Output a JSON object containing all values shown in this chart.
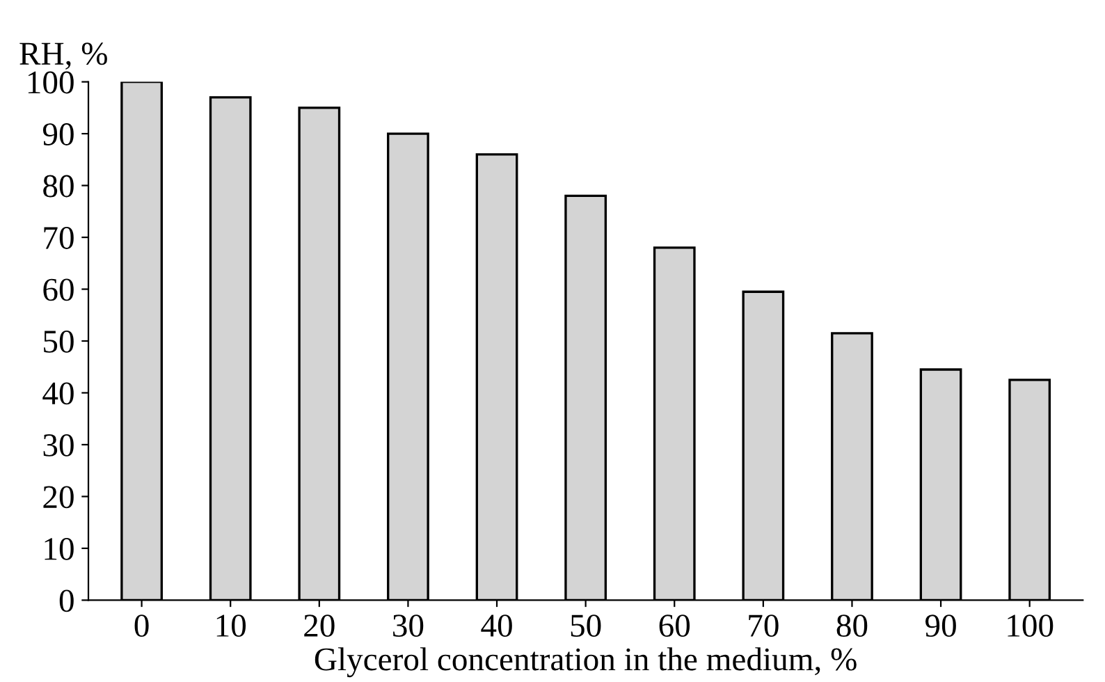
{
  "chart_data": {
    "type": "bar",
    "xlabel": "Glycerol concentration in the medium, %",
    "ylabel": "RH, %",
    "categories": [
      "0",
      "10",
      "20",
      "30",
      "40",
      "50",
      "60",
      "70",
      "80",
      "90",
      "100"
    ],
    "values": [
      100,
      97,
      95,
      90,
      86,
      78,
      68,
      59.5,
      51.5,
      44.5,
      42.5
    ],
    "color": "#d4d4d4",
    "ylim": [
      0,
      100
    ],
    "yticks": [
      0,
      10,
      20,
      30,
      40,
      50,
      60,
      70,
      80,
      90,
      100
    ],
    "grid": false
  }
}
